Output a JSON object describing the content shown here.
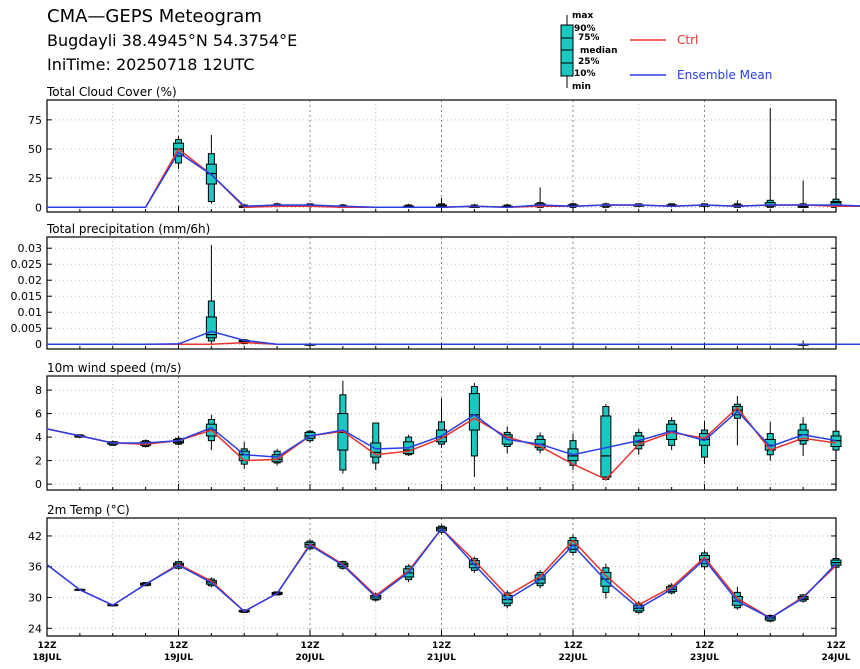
{
  "header": {
    "title": "CMA—GEPS Meteogram",
    "location": "Bugdayli 38.4945°N 54.3754°E",
    "init_time": "IniTime: 20250718 12UTC"
  },
  "legend": {
    "box_labels": [
      "max",
      "90%",
      "75%",
      "median",
      "25%",
      "10%",
      "min"
    ],
    "ctrl_label": "Ctrl",
    "mean_label": "Ensemble Mean",
    "ctrl_color": "#e8322e",
    "mean_color": "#2a3ee6",
    "box_color": "#19c8c0"
  },
  "x_axis": {
    "tick_labels": [
      {
        "top": "12Z",
        "bottom": "18JUL"
      },
      {
        "top": "12Z",
        "bottom": "19JUL"
      },
      {
        "top": "12Z",
        "bottom": "20JUL"
      },
      {
        "top": "12Z",
        "bottom": "21JUL"
      },
      {
        "top": "12Z",
        "bottom": "22JUL"
      },
      {
        "top": "12Z",
        "bottom": "23JUL"
      },
      {
        "top": "12Z",
        "bottom": "24JUL"
      }
    ]
  },
  "chart_data": [
    {
      "type": "box",
      "title": "Total Cloud Cover (%)",
      "x_unit": "forecast hour",
      "x_range": [
        0,
        144
      ],
      "ylim": [
        -4,
        92
      ],
      "yticks": [
        0,
        25,
        50,
        75
      ],
      "ytick_labels": [
        "0",
        "25",
        "50",
        "75"
      ],
      "ctrl": [
        0,
        0,
        0,
        0,
        50,
        28,
        0,
        1,
        1,
        0,
        0,
        0,
        0,
        1,
        0,
        1,
        1,
        2,
        2,
        1,
        2,
        1,
        2,
        2,
        1,
        1,
        1
      ],
      "mean": [
        0,
        0,
        0,
        0,
        47,
        28,
        1,
        2,
        2,
        1,
        0,
        0,
        0,
        1,
        0,
        2,
        1,
        2,
        2,
        1,
        2,
        1,
        2,
        2,
        2,
        1,
        4
      ],
      "boxes": [
        {
          "x": 24,
          "min": 33,
          "p10": 38,
          "p25": 44,
          "med": 50,
          "p75": 55,
          "p90": 58,
          "max": 61
        },
        {
          "x": 30,
          "min": 3,
          "p10": 5,
          "p25": 20,
          "med": 29,
          "p75": 37,
          "p90": 46,
          "max": 62
        },
        {
          "x": 36,
          "min": 0,
          "p10": 0,
          "p25": 0,
          "med": 1,
          "p75": 1,
          "p90": 2,
          "max": 3
        },
        {
          "x": 42,
          "min": 0,
          "p10": 1,
          "p25": 1,
          "med": 2,
          "p75": 2,
          "p90": 3,
          "max": 4
        },
        {
          "x": 48,
          "min": 0,
          "p10": 1,
          "p25": 1,
          "med": 2,
          "p75": 2,
          "p90": 3,
          "max": 3
        },
        {
          "x": 54,
          "min": 0,
          "p10": 0,
          "p25": 0,
          "med": 1,
          "p75": 1,
          "p90": 2,
          "max": 3
        },
        {
          "x": 66,
          "min": 0,
          "p10": 0,
          "p25": 0,
          "med": 1,
          "p75": 1,
          "p90": 2,
          "max": 3
        },
        {
          "x": 72,
          "min": 0,
          "p10": 0,
          "p25": 0,
          "med": 1,
          "p75": 2,
          "p90": 3,
          "max": 8
        },
        {
          "x": 78,
          "min": 0,
          "p10": 0,
          "p25": 0,
          "med": 1,
          "p75": 1,
          "p90": 2,
          "max": 3
        },
        {
          "x": 84,
          "min": 0,
          "p10": 0,
          "p25": 0,
          "med": 1,
          "p75": 1,
          "p90": 2,
          "max": 3
        },
        {
          "x": 90,
          "min": 0,
          "p10": 0,
          "p25": 1,
          "med": 2,
          "p75": 3,
          "p90": 4,
          "max": 17
        },
        {
          "x": 96,
          "min": 0,
          "p10": 0,
          "p25": 1,
          "med": 2,
          "p75": 2,
          "p90": 3,
          "max": 4
        },
        {
          "x": 102,
          "min": 0,
          "p10": 0,
          "p25": 1,
          "med": 2,
          "p75": 2,
          "p90": 3,
          "max": 4
        },
        {
          "x": 108,
          "min": 0,
          "p10": 1,
          "p25": 1,
          "med": 2,
          "p75": 2,
          "p90": 3,
          "max": 3
        },
        {
          "x": 114,
          "min": 0,
          "p10": 1,
          "p25": 1,
          "med": 2,
          "p75": 2,
          "p90": 3,
          "max": 3
        },
        {
          "x": 120,
          "min": 0,
          "p10": 1,
          "p25": 1,
          "med": 2,
          "p75": 2,
          "p90": 3,
          "max": 3
        },
        {
          "x": 126,
          "min": 0,
          "p10": 0,
          "p25": 1,
          "med": 1,
          "p75": 2,
          "p90": 3,
          "max": 6
        },
        {
          "x": 132,
          "min": 0,
          "p10": 0,
          "p25": 1,
          "med": 2,
          "p75": 4,
          "p90": 6,
          "max": 85
        },
        {
          "x": 138,
          "min": 0,
          "p10": 0,
          "p25": 0,
          "med": 1,
          "p75": 1,
          "p90": 3,
          "max": 23
        },
        {
          "x": 144,
          "min": 0,
          "p10": 1,
          "p25": 2,
          "med": 4,
          "p75": 5,
          "p90": 7,
          "max": 10
        }
      ]
    },
    {
      "type": "box",
      "title": "Total precipitation (mm/6h)",
      "x_unit": "forecast hour",
      "x_range": [
        0,
        144
      ],
      "ylim": [
        -0.0015,
        0.0335
      ],
      "yticks": [
        0,
        0.005,
        0.01,
        0.015,
        0.02,
        0.025,
        0.03
      ],
      "ytick_labels": [
        "0",
        "0.005",
        "0.01",
        "0.015",
        "0.02",
        "0.025",
        "0.03"
      ],
      "ctrl": [
        0,
        0,
        0,
        0,
        0,
        0,
        0.0005,
        0,
        0,
        0,
        0,
        0,
        0,
        0,
        0,
        0,
        0,
        0,
        0,
        0,
        0,
        0,
        0,
        0,
        0,
        0,
        0
      ],
      "mean": [
        0,
        0,
        0,
        0,
        0.0001,
        0.004,
        0.0012,
        0,
        0,
        0,
        0,
        0,
        0,
        0,
        0,
        0,
        0,
        0,
        0,
        0,
        0,
        0,
        0,
        0,
        0,
        0,
        0
      ],
      "boxes": [
        {
          "x": 30,
          "min": 0.0002,
          "p10": 0.001,
          "p25": 0.002,
          "med": 0.003,
          "p75": 0.0085,
          "p90": 0.0135,
          "max": 0.031
        },
        {
          "x": 36,
          "min": 0,
          "p10": 0.0002,
          "p25": 0.0006,
          "med": 0.0009,
          "p75": 0.0012,
          "p90": 0.0014,
          "max": 0.0016
        },
        {
          "x": 48,
          "min": -0.0005,
          "p10": 0,
          "p25": 0,
          "med": 0,
          "p75": 0,
          "p90": 0,
          "max": 0
        },
        {
          "x": 138,
          "min": 0,
          "p10": 0,
          "p25": 0,
          "med": 0,
          "p75": 0,
          "p90": 0,
          "max": 0.0012
        }
      ]
    },
    {
      "type": "box",
      "title": "10m wind speed (m/s)",
      "x_unit": "forecast hour",
      "x_range": [
        0,
        144
      ],
      "ylim": [
        -0.5,
        9.2
      ],
      "yticks": [
        0,
        2,
        4,
        6,
        8
      ],
      "ytick_labels": [
        "0",
        "2",
        "4",
        "6",
        "8"
      ],
      "ctrl": [
        4.7,
        4.1,
        3.5,
        3.4,
        3.7,
        4.6,
        2.0,
        2.1,
        4.1,
        4.5,
        2.5,
        2.8,
        3.9,
        5.6,
        4.0,
        3.2,
        1.7,
        0.4,
        3.4,
        4.4,
        3.9,
        6.5,
        2.9,
        3.9,
        3.5
      ],
      "mean": [
        4.7,
        4.1,
        3.5,
        3.5,
        3.7,
        4.8,
        2.5,
        2.3,
        4.1,
        4.6,
        3.0,
        3.1,
        4.1,
        5.9,
        3.8,
        3.4,
        2.5,
        3.1,
        3.7,
        4.5,
        3.7,
        6.2,
        3.2,
        4.2,
        3.7
      ],
      "boxes": [
        {
          "x": 6,
          "min": 3.9,
          "p10": 4.0,
          "p25": 4.0,
          "med": 4.1,
          "p75": 4.1,
          "p90": 4.2,
          "max": 4.2
        },
        {
          "x": 12,
          "min": 3.3,
          "p10": 3.3,
          "p25": 3.4,
          "med": 3.5,
          "p75": 3.6,
          "p90": 3.6,
          "max": 3.7
        },
        {
          "x": 18,
          "min": 3.1,
          "p10": 3.2,
          "p25": 3.3,
          "med": 3.4,
          "p75": 3.6,
          "p90": 3.7,
          "max": 3.8
        },
        {
          "x": 24,
          "min": 3.3,
          "p10": 3.4,
          "p25": 3.5,
          "med": 3.6,
          "p75": 3.8,
          "p90": 3.9,
          "max": 4.1
        },
        {
          "x": 30,
          "min": 2.9,
          "p10": 3.7,
          "p25": 4.1,
          "med": 4.6,
          "p75": 5.1,
          "p90": 5.5,
          "max": 5.9
        },
        {
          "x": 36,
          "min": 1.3,
          "p10": 1.7,
          "p25": 2.0,
          "med": 2.5,
          "p75": 2.8,
          "p90": 3.0,
          "max": 3.6
        },
        {
          "x": 42,
          "min": 1.6,
          "p10": 1.8,
          "p25": 1.9,
          "med": 2.1,
          "p75": 2.5,
          "p90": 2.8,
          "max": 3.0
        },
        {
          "x": 48,
          "min": 3.5,
          "p10": 3.7,
          "p25": 3.9,
          "med": 4.1,
          "p75": 4.4,
          "p90": 4.5,
          "max": 4.6
        },
        {
          "x": 54,
          "min": 0.9,
          "p10": 1.2,
          "p25": 2.9,
          "med": 4.4,
          "p75": 6.0,
          "p90": 7.6,
          "max": 8.8
        },
        {
          "x": 60,
          "min": 1.2,
          "p10": 1.8,
          "p25": 2.3,
          "med": 2.7,
          "p75": 3.5,
          "p90": 5.2,
          "max": 5.2
        },
        {
          "x": 66,
          "min": 2.4,
          "p10": 2.5,
          "p25": 2.6,
          "med": 2.9,
          "p75": 3.6,
          "p90": 4.0,
          "max": 4.2
        },
        {
          "x": 72,
          "min": 3.1,
          "p10": 3.4,
          "p25": 3.6,
          "med": 4.0,
          "p75": 4.6,
          "p90": 5.3,
          "max": 7.3
        },
        {
          "x": 78,
          "min": 0.6,
          "p10": 2.4,
          "p25": 4.6,
          "med": 5.9,
          "p75": 7.7,
          "p90": 8.3,
          "max": 8.6
        },
        {
          "x": 84,
          "min": 2.6,
          "p10": 3.2,
          "p25": 3.4,
          "med": 4.0,
          "p75": 4.2,
          "p90": 4.4,
          "max": 4.9
        },
        {
          "x": 90,
          "min": 2.6,
          "p10": 2.9,
          "p25": 3.1,
          "med": 3.4,
          "p75": 3.8,
          "p90": 4.1,
          "max": 4.4
        },
        {
          "x": 96,
          "min": 1.2,
          "p10": 1.6,
          "p25": 2.0,
          "med": 2.4,
          "p75": 3.0,
          "p90": 3.7,
          "max": 4.3
        },
        {
          "x": 102,
          "min": 0.3,
          "p10": 0.4,
          "p25": 0.6,
          "med": 2.4,
          "p75": 5.8,
          "p90": 6.6,
          "max": 6.8
        },
        {
          "x": 108,
          "min": 2.5,
          "p10": 3.0,
          "p25": 3.3,
          "med": 3.6,
          "p75": 4.1,
          "p90": 4.4,
          "max": 4.7
        },
        {
          "x": 114,
          "min": 2.9,
          "p10": 3.3,
          "p25": 3.8,
          "med": 4.5,
          "p75": 5.1,
          "p90": 5.4,
          "max": 5.7
        },
        {
          "x": 120,
          "min": 1.7,
          "p10": 2.3,
          "p25": 3.3,
          "med": 3.8,
          "p75": 4.3,
          "p90": 4.6,
          "max": 5.4
        },
        {
          "x": 126,
          "min": 3.3,
          "p10": 5.6,
          "p25": 5.9,
          "med": 6.3,
          "p75": 6.6,
          "p90": 6.8,
          "max": 7.5
        },
        {
          "x": 132,
          "min": 2.0,
          "p10": 2.5,
          "p25": 2.9,
          "med": 3.3,
          "p75": 3.8,
          "p90": 4.3,
          "max": 5.3
        },
        {
          "x": 138,
          "min": 2.4,
          "p10": 3.4,
          "p25": 3.7,
          "med": 4.2,
          "p75": 4.6,
          "p90": 5.1,
          "max": 5.7
        },
        {
          "x": 144,
          "min": 2.6,
          "p10": 2.9,
          "p25": 3.2,
          "med": 3.7,
          "p75": 4.1,
          "p90": 4.5,
          "max": 4.8
        }
      ]
    },
    {
      "type": "box",
      "title": "2m Temp (°C)",
      "x_unit": "forecast hour",
      "x_range": [
        0,
        144
      ],
      "ylim": [
        22.5,
        45.5
      ],
      "yticks": [
        24,
        30,
        36,
        42
      ],
      "ytick_labels": [
        "24",
        "30",
        "36",
        "42"
      ],
      "ctrl": [
        36.4,
        31.5,
        28.5,
        32.6,
        36.5,
        33.2,
        27.3,
        30.8,
        40.4,
        36.5,
        30.4,
        35.2,
        43.4,
        37.2,
        30.4,
        34.1,
        41.1,
        34.3,
        28.6,
        32.0,
        37.8,
        29.8,
        26.0,
        30.1,
        36.2
      ],
      "mean": [
        36.4,
        31.5,
        28.5,
        32.6,
        36.3,
        32.9,
        27.3,
        30.8,
        40.2,
        36.3,
        30.1,
        34.9,
        43.4,
        36.4,
        29.6,
        33.5,
        40.2,
        33.3,
        27.9,
        31.6,
        37.4,
        29.3,
        26.0,
        29.9,
        36.6
      ],
      "boxes": [
        {
          "x": 6,
          "min": 31.3,
          "p10": 31.4,
          "p25": 31.4,
          "med": 31.5,
          "p75": 31.6,
          "p90": 31.6,
          "max": 31.7
        },
        {
          "x": 12,
          "min": 28.3,
          "p10": 28.4,
          "p25": 28.4,
          "med": 28.5,
          "p75": 28.6,
          "p90": 28.6,
          "max": 28.7
        },
        {
          "x": 18,
          "min": 32.2,
          "p10": 32.3,
          "p25": 32.4,
          "med": 32.6,
          "p75": 32.8,
          "p90": 32.9,
          "max": 33.0
        },
        {
          "x": 24,
          "min": 35.4,
          "p10": 35.7,
          "p25": 36.0,
          "med": 36.4,
          "p75": 36.7,
          "p90": 37.0,
          "max": 37.2
        },
        {
          "x": 30,
          "min": 32.0,
          "p10": 32.3,
          "p25": 32.6,
          "med": 33.0,
          "p75": 33.3,
          "p90": 33.6,
          "max": 33.9
        },
        {
          "x": 36,
          "min": 27.0,
          "p10": 27.1,
          "p25": 27.2,
          "med": 27.3,
          "p75": 27.5,
          "p90": 27.6,
          "max": 27.7
        },
        {
          "x": 42,
          "min": 30.4,
          "p10": 30.5,
          "p25": 30.6,
          "med": 30.8,
          "p75": 31.0,
          "p90": 31.1,
          "max": 31.2
        },
        {
          "x": 48,
          "min": 39.2,
          "p10": 39.5,
          "p25": 39.8,
          "med": 40.3,
          "p75": 40.7,
          "p90": 41.0,
          "max": 41.3
        },
        {
          "x": 54,
          "min": 35.4,
          "p10": 35.7,
          "p25": 36.0,
          "med": 36.4,
          "p75": 36.7,
          "p90": 37.0,
          "max": 37.2
        },
        {
          "x": 60,
          "min": 29.2,
          "p10": 29.5,
          "p25": 29.7,
          "med": 30.1,
          "p75": 30.4,
          "p90": 30.7,
          "max": 31.0
        },
        {
          "x": 66,
          "min": 33.0,
          "p10": 33.5,
          "p25": 34.0,
          "med": 34.8,
          "p75": 35.6,
          "p90": 36.1,
          "max": 36.5
        },
        {
          "x": 72,
          "min": 42.3,
          "p10": 42.7,
          "p25": 43.0,
          "med": 43.4,
          "p75": 43.7,
          "p90": 43.9,
          "max": 44.2
        },
        {
          "x": 78,
          "min": 34.8,
          "p10": 35.3,
          "p25": 35.8,
          "med": 36.5,
          "p75": 37.2,
          "p90": 37.6,
          "max": 38.0
        },
        {
          "x": 84,
          "min": 27.9,
          "p10": 28.4,
          "p25": 28.9,
          "med": 29.6,
          "p75": 30.4,
          "p90": 30.9,
          "max": 31.4
        },
        {
          "x": 90,
          "min": 31.8,
          "p10": 32.3,
          "p25": 32.8,
          "med": 33.6,
          "p75": 34.4,
          "p90": 34.9,
          "max": 35.3
        },
        {
          "x": 96,
          "min": 38.2,
          "p10": 38.8,
          "p25": 39.4,
          "med": 40.2,
          "p75": 41.1,
          "p90": 41.7,
          "max": 42.3
        },
        {
          "x": 102,
          "min": 29.8,
          "p10": 31.0,
          "p25": 32.2,
          "med": 33.6,
          "p75": 34.9,
          "p90": 35.8,
          "max": 36.6
        },
        {
          "x": 108,
          "min": 26.8,
          "p10": 27.1,
          "p25": 27.4,
          "med": 27.9,
          "p75": 28.5,
          "p90": 28.9,
          "max": 29.3
        },
        {
          "x": 114,
          "min": 30.6,
          "p10": 30.9,
          "p25": 31.2,
          "med": 31.6,
          "p75": 32.1,
          "p90": 32.4,
          "max": 32.8
        },
        {
          "x": 120,
          "min": 35.4,
          "p10": 36.0,
          "p25": 36.6,
          "med": 37.4,
          "p75": 38.2,
          "p90": 38.7,
          "max": 39.2
        },
        {
          "x": 126,
          "min": 27.6,
          "p10": 28.0,
          "p25": 28.5,
          "med": 29.3,
          "p75": 30.2,
          "p90": 31.0,
          "max": 32.1
        },
        {
          "x": 132,
          "min": 25.2,
          "p10": 25.4,
          "p25": 25.6,
          "med": 26.0,
          "p75": 26.3,
          "p90": 26.5,
          "max": 26.7
        },
        {
          "x": 138,
          "min": 29.0,
          "p10": 29.3,
          "p25": 29.6,
          "med": 29.9,
          "p75": 30.2,
          "p90": 30.5,
          "max": 30.7
        },
        {
          "x": 144,
          "min": 35.4,
          "p10": 35.9,
          "p25": 36.3,
          "med": 36.8,
          "p75": 37.3,
          "p90": 37.6,
          "max": 37.9
        }
      ]
    }
  ]
}
